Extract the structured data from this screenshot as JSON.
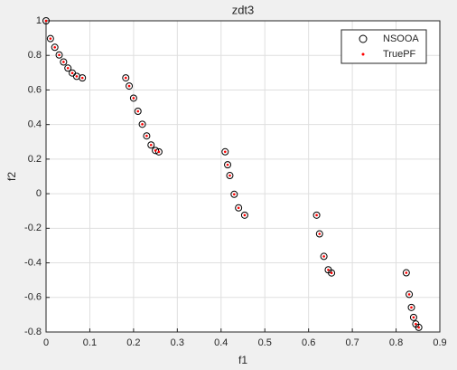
{
  "chart_data": {
    "type": "scatter",
    "title": "zdt3",
    "x_label": "f1",
    "y_label": "f2",
    "x": [
      0,
      0.01,
      0.02,
      0.03,
      0.04,
      0.05,
      0.06,
      0.07,
      0.083,
      0.1822,
      0.19,
      0.2,
      0.21,
      0.22,
      0.23,
      0.24,
      0.25,
      0.2578,
      0.4093,
      0.415,
      0.42,
      0.43,
      0.44,
      0.4539,
      0.6184,
      0.625,
      0.635,
      0.645,
      0.6525,
      0.8233,
      0.83,
      0.835,
      0.84,
      0.845,
      0.8518
    ],
    "series": [
      {
        "name": "NSOOA",
        "color": "#000000",
        "marker": "circle",
        "values": [
          1,
          0.897,
          0.8468,
          0.8025,
          0.762,
          0.7264,
          0.698,
          0.6788,
          0.6697,
          0.6699,
          0.6228,
          0.5528,
          0.4768,
          0.4017,
          0.3343,
          0.2818,
          0.25,
          0.2422,
          0.2423,
          0.1674,
          0.105,
          -0.0036,
          -0.0818,
          -0.1242,
          -0.1242,
          -0.2325,
          -0.3627,
          -0.4402,
          -0.4583,
          -0.4575,
          -0.5825,
          -0.6578,
          -0.7154,
          -0.7538,
          -0.7733
        ]
      },
      {
        "name": "TruePF",
        "color": "#ff0000",
        "marker": "dot",
        "values": [
          1,
          0.897,
          0.8468,
          0.8025,
          0.762,
          0.7264,
          0.698,
          0.6788,
          0.6697,
          0.6699,
          0.6228,
          0.5528,
          0.4768,
          0.4017,
          0.3343,
          0.2818,
          0.25,
          0.2422,
          0.2423,
          0.1674,
          0.105,
          -0.0036,
          -0.0818,
          -0.1242,
          -0.1242,
          -0.2325,
          -0.3627,
          -0.4402,
          -0.4583,
          -0.4575,
          -0.5825,
          -0.6578,
          -0.7154,
          -0.7538,
          -0.7733
        ]
      }
    ],
    "xlim": [
      0,
      0.9
    ],
    "xticks": [
      0,
      0.1,
      0.2,
      0.3,
      0.4,
      0.5,
      0.6,
      0.7,
      0.8,
      0.9
    ],
    "ylim": [
      -0.8,
      1
    ],
    "yticks": [
      -0.8,
      -0.6,
      -0.4,
      -0.2,
      0,
      0.2,
      0.4,
      0.6,
      0.8,
      1
    ],
    "grid": true,
    "legend": "top-right"
  }
}
